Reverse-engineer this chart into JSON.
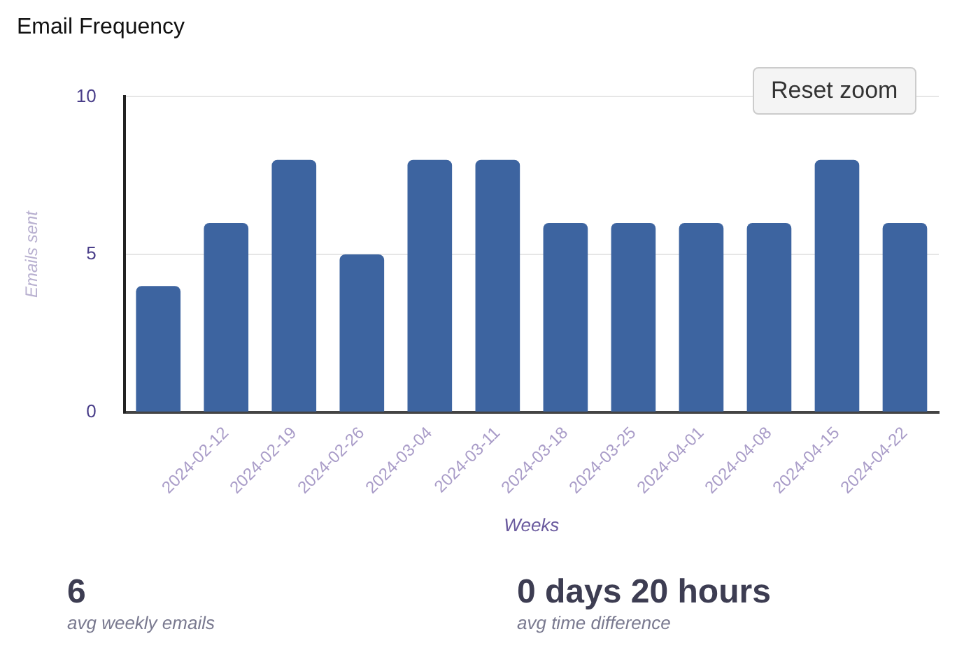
{
  "chart_data": {
    "type": "bar",
    "title": "Email Frequency",
    "xlabel": "Weeks",
    "ylabel": "Emails sent",
    "categories": [
      null,
      "2024-02-12",
      "2024-02-19",
      "2024-02-26",
      "2024-03-04",
      "2024-03-11",
      "2024-03-18",
      "2024-03-25",
      "2024-04-01",
      "2024-04-08",
      "2024-04-15",
      "2024-04-22"
    ],
    "values": [
      4,
      6,
      8,
      5,
      8,
      8,
      6,
      6,
      6,
      6,
      8,
      6
    ],
    "color": "#3d64a0",
    "ylim": [
      0,
      10
    ],
    "yticks": [
      0,
      5,
      10
    ],
    "grid": "y",
    "legend": false,
    "annotations": [
      "Reset zoom",
      "6",
      "avg weekly emails",
      "0 days 20 hours",
      "avg time difference"
    ]
  }
}
